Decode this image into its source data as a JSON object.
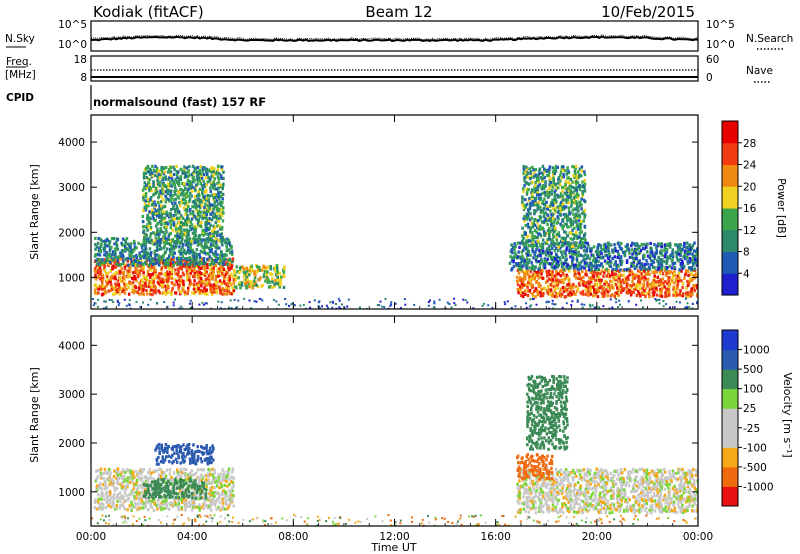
{
  "header": {
    "station": "Kodiak (fitACF)",
    "beam": "Beam 12",
    "date": "10/Feb/2015"
  },
  "sky_panel": {
    "left_label": "N.Sky",
    "right_label": "N.Search",
    "y_ticks_left": [
      "10^5",
      "10^0"
    ],
    "y_ticks_right": [
      "10^5",
      "10^0"
    ]
  },
  "freq_panel": {
    "left_label_1": "Freq.",
    "left_label_2": "[MHz]",
    "right_label": "Nave",
    "y_ticks_left": [
      "18",
      "8"
    ],
    "y_ticks_right": [
      "60",
      "0"
    ]
  },
  "cpid": {
    "label": "CPID",
    "value": "normalsound (fast) 157 RF"
  },
  "colors": {
    "power_scale": [
      "#1f1fd0",
      "#1f5ab4",
      "#2a8a6a",
      "#3aa54a",
      "#f0d020",
      "#f08a10",
      "#f03c10",
      "#e80000"
    ],
    "velocity_scale": [
      "#1f3ad0",
      "#2a5ab0",
      "#3b8a55",
      "#7cd63a",
      "#c8c8c8",
      "#c8c8c8",
      "#f4a81a",
      "#f06a10",
      "#e81010"
    ],
    "ground_scatter": "#c8c8c8"
  },
  "chart_data": [
    {
      "type": "heatmap",
      "name": "power",
      "ylabel": "Slant Range [km]",
      "y_ticks": [
        "1000",
        "2000",
        "3000",
        "4000"
      ],
      "ylim": [
        300,
        4600
      ],
      "x_ticks": [
        "00:00",
        "04:00",
        "08:00",
        "12:00",
        "16:00",
        "20:00",
        "00:00"
      ],
      "xlim_hours": [
        0,
        24
      ],
      "colorbar": {
        "label": "Power [dB]",
        "ticks": [
          "4",
          "8",
          "12",
          "16",
          "20",
          "24",
          "28"
        ],
        "range": [
          0,
          32
        ]
      },
      "regions": [
        {
          "t0": 0.1,
          "t1": 5.6,
          "r0": 650,
          "r1": 1450,
          "level": 24
        },
        {
          "t0": 0.1,
          "t1": 5.6,
          "r0": 1300,
          "r1": 1900,
          "level": 10
        },
        {
          "t0": 2.0,
          "t1": 5.2,
          "r0": 1800,
          "r1": 3500,
          "level": 12
        },
        {
          "t0": 5.6,
          "t1": 7.6,
          "r0": 800,
          "r1": 1300,
          "level": 16
        },
        {
          "t0": 16.8,
          "t1": 24.0,
          "r0": 600,
          "r1": 1200,
          "level": 24
        },
        {
          "t0": 16.5,
          "t1": 24.0,
          "r0": 1200,
          "r1": 1800,
          "level": 8
        },
        {
          "t0": 17.0,
          "t1": 19.5,
          "r0": 1700,
          "r1": 3500,
          "level": 12
        }
      ]
    },
    {
      "type": "heatmap",
      "name": "velocity",
      "ylabel": "Slant Range [km]",
      "y_ticks": [
        "1000",
        "2000",
        "3000",
        "4000"
      ],
      "ylim": [
        300,
        4600
      ],
      "x_ticks": [
        "00:00",
        "04:00",
        "08:00",
        "12:00",
        "16:00",
        "20:00",
        "00:00"
      ],
      "xlim_hours": [
        0,
        24
      ],
      "xlabel": "Time UT",
      "colorbar": {
        "label": "Velocity [m s⁻¹]",
        "ticks": [
          "1000",
          "500",
          "100",
          "25",
          "-25",
          "-100",
          "-500",
          "-1000"
        ]
      },
      "regions": [
        {
          "t0": 0.1,
          "t1": 5.6,
          "r0": 650,
          "r1": 1500,
          "velocity": 0
        },
        {
          "t0": 2.5,
          "t1": 4.8,
          "r0": 1600,
          "r1": 2000,
          "velocity": 400
        },
        {
          "t0": 2.0,
          "t1": 4.5,
          "r0": 900,
          "r1": 1300,
          "velocity": 150
        },
        {
          "t0": 16.8,
          "t1": 24.0,
          "r0": 600,
          "r1": 1500,
          "velocity": 0
        },
        {
          "t0": 16.8,
          "t1": 18.2,
          "r0": 1300,
          "r1": 1800,
          "velocity": -150
        },
        {
          "t0": 17.2,
          "t1": 18.8,
          "r0": 1900,
          "r1": 3400,
          "velocity": 150
        }
      ]
    }
  ]
}
